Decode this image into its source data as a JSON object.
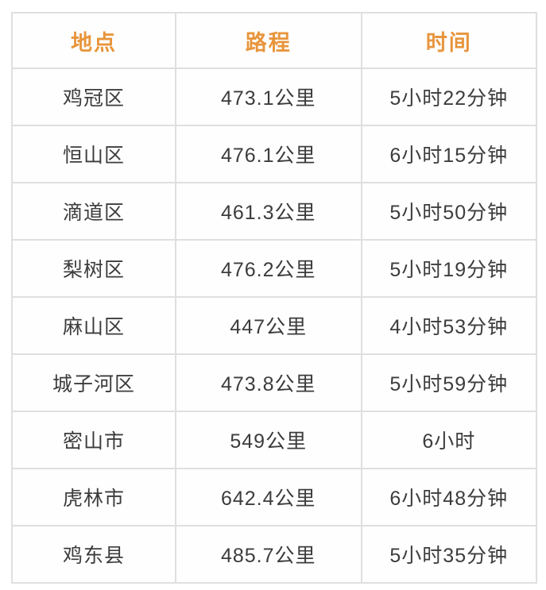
{
  "chart_data": {
    "type": "table",
    "columns": [
      "地点",
      "路程",
      "时间"
    ],
    "rows": [
      {
        "location": "鸡冠区",
        "distance": "473.1公里",
        "time": "5小时22分钟"
      },
      {
        "location": "恒山区",
        "distance": "476.1公里",
        "time": "6小时15分钟"
      },
      {
        "location": "滴道区",
        "distance": "461.3公里",
        "time": "5小时50分钟"
      },
      {
        "location": "梨树区",
        "distance": "476.2公里",
        "time": "5小时19分钟"
      },
      {
        "location": "麻山区",
        "distance": "447公里",
        "time": "4小时53分钟"
      },
      {
        "location": "城子河区",
        "distance": "473.8公里",
        "time": "5小时59分钟"
      },
      {
        "location": "密山市",
        "distance": "549公里",
        "time": "6小时"
      },
      {
        "location": "虎林市",
        "distance": "642.4公里",
        "time": "6小时48分钟"
      },
      {
        "location": "鸡东县",
        "distance": "485.7公里",
        "time": "5小时35分钟"
      }
    ],
    "colors": {
      "header_text": "#e8953c",
      "body_text": "#3c3c3c",
      "border": "#dfdfdf",
      "background": "#ffffff"
    }
  }
}
